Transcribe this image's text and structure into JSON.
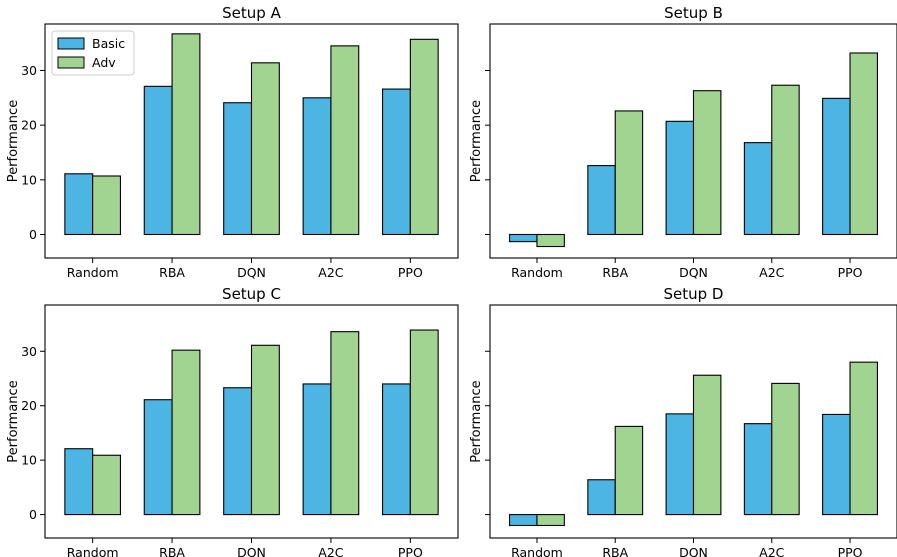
{
  "chart_data": [
    {
      "type": "bar",
      "title": "Setup A",
      "xlabel": "",
      "ylabel": "Performance",
      "categories": [
        "Random",
        "RBA",
        "DQN",
        "A2C",
        "PPO"
      ],
      "series": [
        {
          "name": "Basic",
          "values": [
            11.1,
            27.1,
            24.1,
            25.0,
            26.6
          ]
        },
        {
          "name": "Adv",
          "values": [
            10.7,
            36.7,
            31.4,
            34.5,
            35.7
          ]
        }
      ],
      "ylim": [
        -4.3,
        38.5
      ],
      "yticks": [
        0,
        10,
        20,
        30
      ],
      "legend": "top-left",
      "grid": false
    },
    {
      "type": "bar",
      "title": "Setup B",
      "xlabel": "",
      "ylabel": "Performance",
      "categories": [
        "Random",
        "RBA",
        "DQN",
        "A2C",
        "PPO"
      ],
      "series": [
        {
          "name": "Basic",
          "values": [
            -1.3,
            12.6,
            20.7,
            16.8,
            24.9
          ]
        },
        {
          "name": "Adv",
          "values": [
            -2.2,
            22.6,
            26.3,
            27.3,
            33.2
          ]
        }
      ],
      "ylim": [
        -4.3,
        38.5
      ],
      "yticks": [
        0,
        10,
        20,
        30
      ],
      "grid": false
    },
    {
      "type": "bar",
      "title": "Setup C",
      "xlabel": "",
      "ylabel": "Performance",
      "categories": [
        "Random",
        "RBA",
        "DQN",
        "A2C",
        "PPO"
      ],
      "series": [
        {
          "name": "Basic",
          "values": [
            12.1,
            21.1,
            23.3,
            24.0,
            24.0
          ]
        },
        {
          "name": "Adv",
          "values": [
            10.9,
            30.2,
            31.1,
            33.6,
            33.9
          ]
        }
      ],
      "ylim": [
        -4.3,
        38.5
      ],
      "yticks": [
        0,
        10,
        20,
        30
      ],
      "grid": false
    },
    {
      "type": "bar",
      "title": "Setup D",
      "xlabel": "",
      "ylabel": "Performance",
      "categories": [
        "Random",
        "RBA",
        "DQN",
        "A2C",
        "PPO"
      ],
      "series": [
        {
          "name": "Basic",
          "values": [
            -2.0,
            6.4,
            18.5,
            16.7,
            18.4
          ]
        },
        {
          "name": "Adv",
          "values": [
            -2.0,
            16.2,
            25.6,
            24.1,
            28.0
          ]
        }
      ],
      "ylim": [
        -4.3,
        38.5
      ],
      "yticks": [
        0,
        10,
        20,
        30
      ],
      "grid": false
    }
  ],
  "colors": {
    "Basic": "#4db5e4",
    "Adv": "#a2d491",
    "edge": "#000000"
  }
}
